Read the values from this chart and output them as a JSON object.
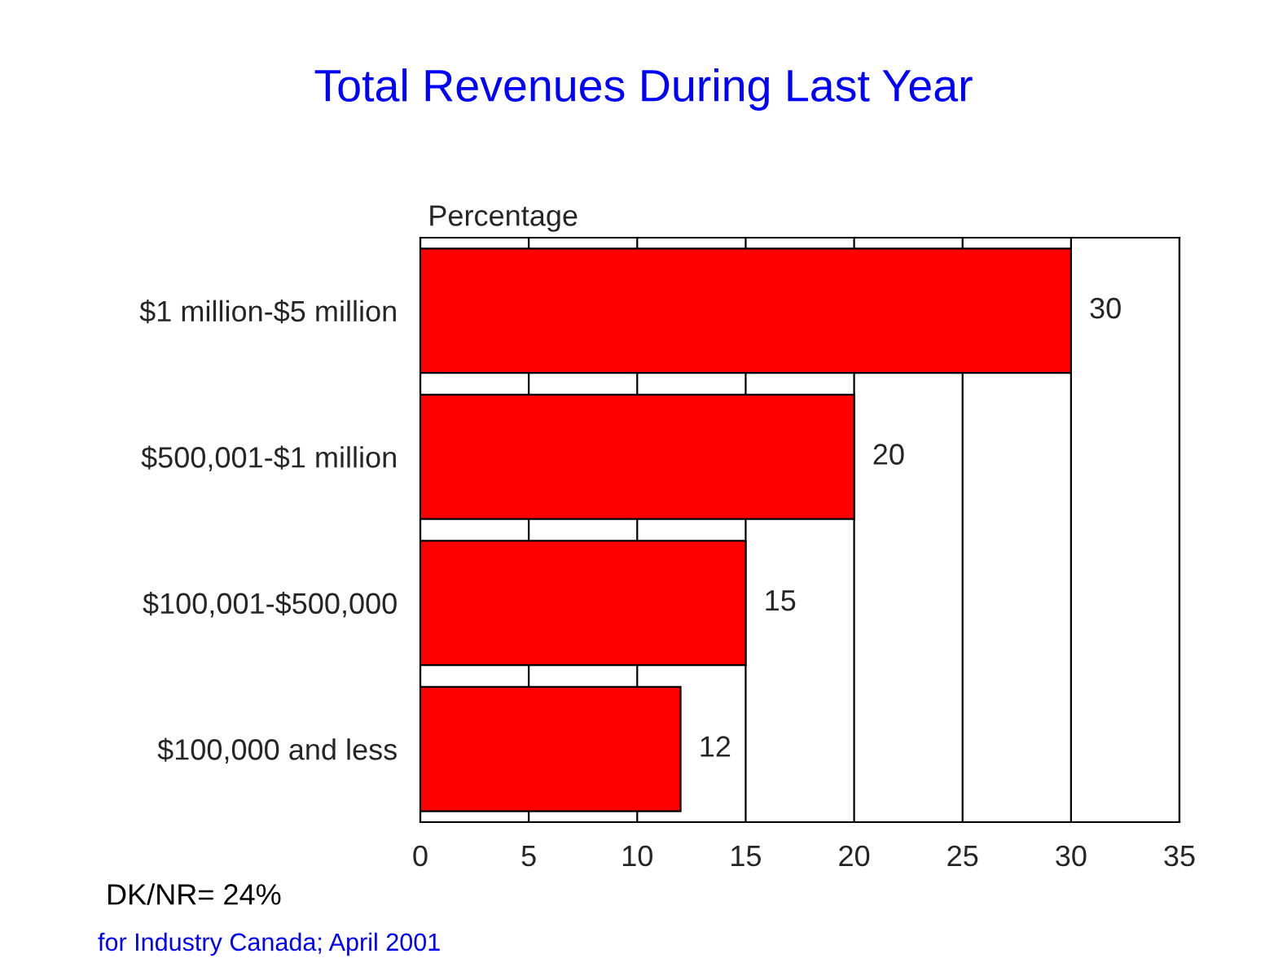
{
  "chart_data": {
    "type": "bar",
    "orientation": "horizontal",
    "title": "Total Revenues During Last Year",
    "xlabel": "Percentage",
    "categories": [
      "$1 million-$5 million",
      "$500,001-$1 million",
      "$100,001-$500,000",
      "$100,000 and less"
    ],
    "values": [
      30,
      20,
      15,
      12
    ],
    "color": "#ff0000",
    "xlim": [
      0,
      35
    ],
    "xticks": [
      0,
      5,
      10,
      15,
      20,
      25,
      30,
      35
    ],
    "grid": "x",
    "data_labels": true,
    "annotations": [
      "DK/NR= 24%",
      "for Industry Canada; April 2001"
    ]
  }
}
